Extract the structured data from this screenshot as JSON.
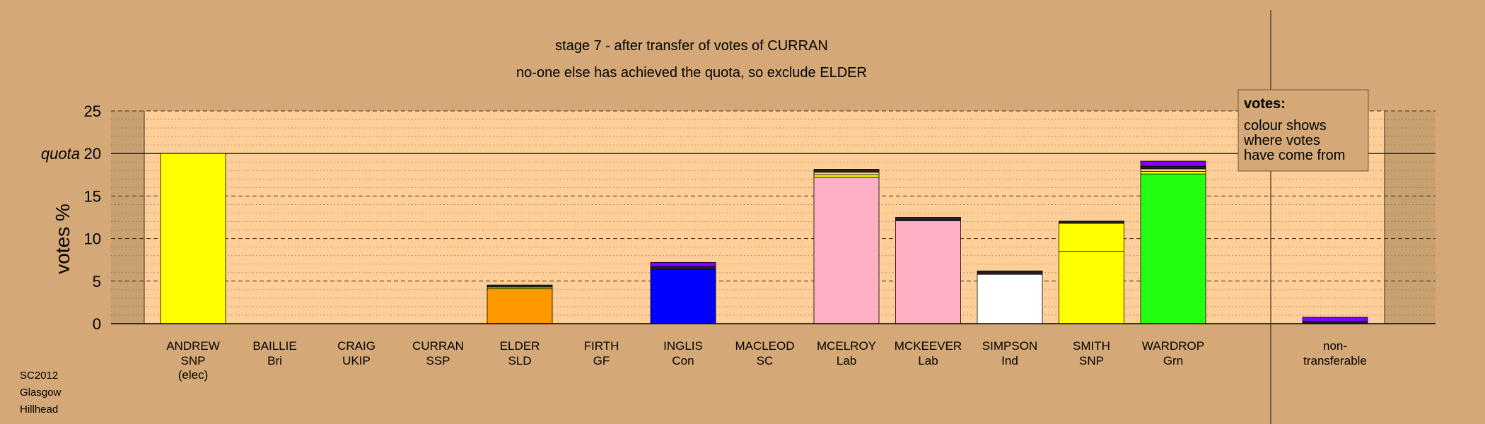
{
  "chart_data": {
    "type": "bar",
    "title": "stage 7 - after transfer of votes of CURRAN",
    "subtitle": "no-one else has achieved the quota, so exclude ELDER",
    "ylabel": "votes %",
    "ylim": [
      0,
      25
    ],
    "yticks": [
      0,
      5,
      10,
      15,
      25
    ],
    "quota": {
      "label": "quota",
      "value": 20
    },
    "grid": true,
    "legend": {
      "title": "votes:",
      "lines": [
        "colour shows",
        "where votes",
        "have come from"
      ],
      "placement": "top-right"
    },
    "candidates": [
      {
        "name": "ANDREW",
        "party": "SNP",
        "note": "(elec)",
        "color": "#ffff00",
        "segments": [
          {
            "value": 20.0,
            "color": "#ffff00"
          }
        ]
      },
      {
        "name": "BAILLIE",
        "party": "Bri",
        "note": "",
        "color": "#ffffff",
        "segments": []
      },
      {
        "name": "CRAIG",
        "party": "UKIP",
        "note": "",
        "color": "#ffffff",
        "segments": []
      },
      {
        "name": "CURRAN",
        "party": "SSP",
        "note": "",
        "color": "#ffffff",
        "segments": []
      },
      {
        "name": "ELDER",
        "party": "SLD",
        "note": "",
        "color": "#ff9900",
        "segments": [
          {
            "value": 4.1,
            "color": "#ff9900"
          },
          {
            "value": 0.2,
            "color": "#ffff00"
          },
          {
            "value": 0.25,
            "color": "#222222"
          }
        ]
      },
      {
        "name": "FIRTH",
        "party": "GF",
        "note": "",
        "color": "#ffffff",
        "segments": []
      },
      {
        "name": "INGLIS",
        "party": "Con",
        "note": "",
        "color": "#0000ff",
        "segments": [
          {
            "value": 6.4,
            "color": "#0000ff"
          },
          {
            "value": 0.3,
            "color": "#222222"
          },
          {
            "value": 0.5,
            "color": "#7f00ff"
          }
        ]
      },
      {
        "name": "MACLEOD",
        "party": "SC",
        "note": "",
        "color": "#ffffff",
        "segments": []
      },
      {
        "name": "MCELROY",
        "party": "Lab",
        "note": "",
        "color": "#ffb0c4",
        "segments": [
          {
            "value": 17.2,
            "color": "#ffb0c4"
          },
          {
            "value": 0.3,
            "color": "#ffff00"
          },
          {
            "value": 0.3,
            "color": "#ffcf88"
          },
          {
            "value": 0.35,
            "color": "#222222"
          }
        ]
      },
      {
        "name": "MCKEEVER",
        "party": "Lab",
        "note": "",
        "color": "#ffb0c4",
        "segments": [
          {
            "value": 12.1,
            "color": "#ffb0c4"
          },
          {
            "value": 0.4,
            "color": "#222222"
          }
        ]
      },
      {
        "name": "SIMPSON",
        "party": "Ind",
        "note": "",
        "color": "#ffffff",
        "segments": [
          {
            "value": 5.8,
            "color": "#ffffff"
          },
          {
            "value": 0.15,
            "color": "#7f00ff"
          },
          {
            "value": 0.25,
            "color": "#222222"
          }
        ]
      },
      {
        "name": "SMITH",
        "party": "SNP",
        "note": "",
        "color": "#ffff00",
        "segments": [
          {
            "value": 8.5,
            "color": "#ffff00"
          },
          {
            "value": 3.3,
            "color": "#ffff00"
          },
          {
            "value": 0.25,
            "color": "#222222"
          }
        ]
      },
      {
        "name": "WARDROP",
        "party": "Grn",
        "note": "",
        "color": "#22ff11",
        "segments": [
          {
            "value": 17.6,
            "color": "#22ff11"
          },
          {
            "value": 0.3,
            "color": "#ffff00"
          },
          {
            "value": 0.3,
            "color": "#ffcf88"
          },
          {
            "value": 0.3,
            "color": "#222222"
          },
          {
            "value": 0.6,
            "color": "#7f00ff"
          }
        ]
      }
    ],
    "nontransferable": {
      "label_lines": [
        "non-",
        "transferable"
      ],
      "segments": [
        {
          "value": 0.25,
          "color": "#222222"
        },
        {
          "value": 0.5,
          "color": "#7f00ff"
        }
      ]
    }
  },
  "footer": [
    "SC2012",
    "Glasgow",
    "Hillhead"
  ],
  "colors": {
    "background": "#d4a977",
    "plot_fill": "#ffcf99",
    "grid": "#7a6550"
  }
}
